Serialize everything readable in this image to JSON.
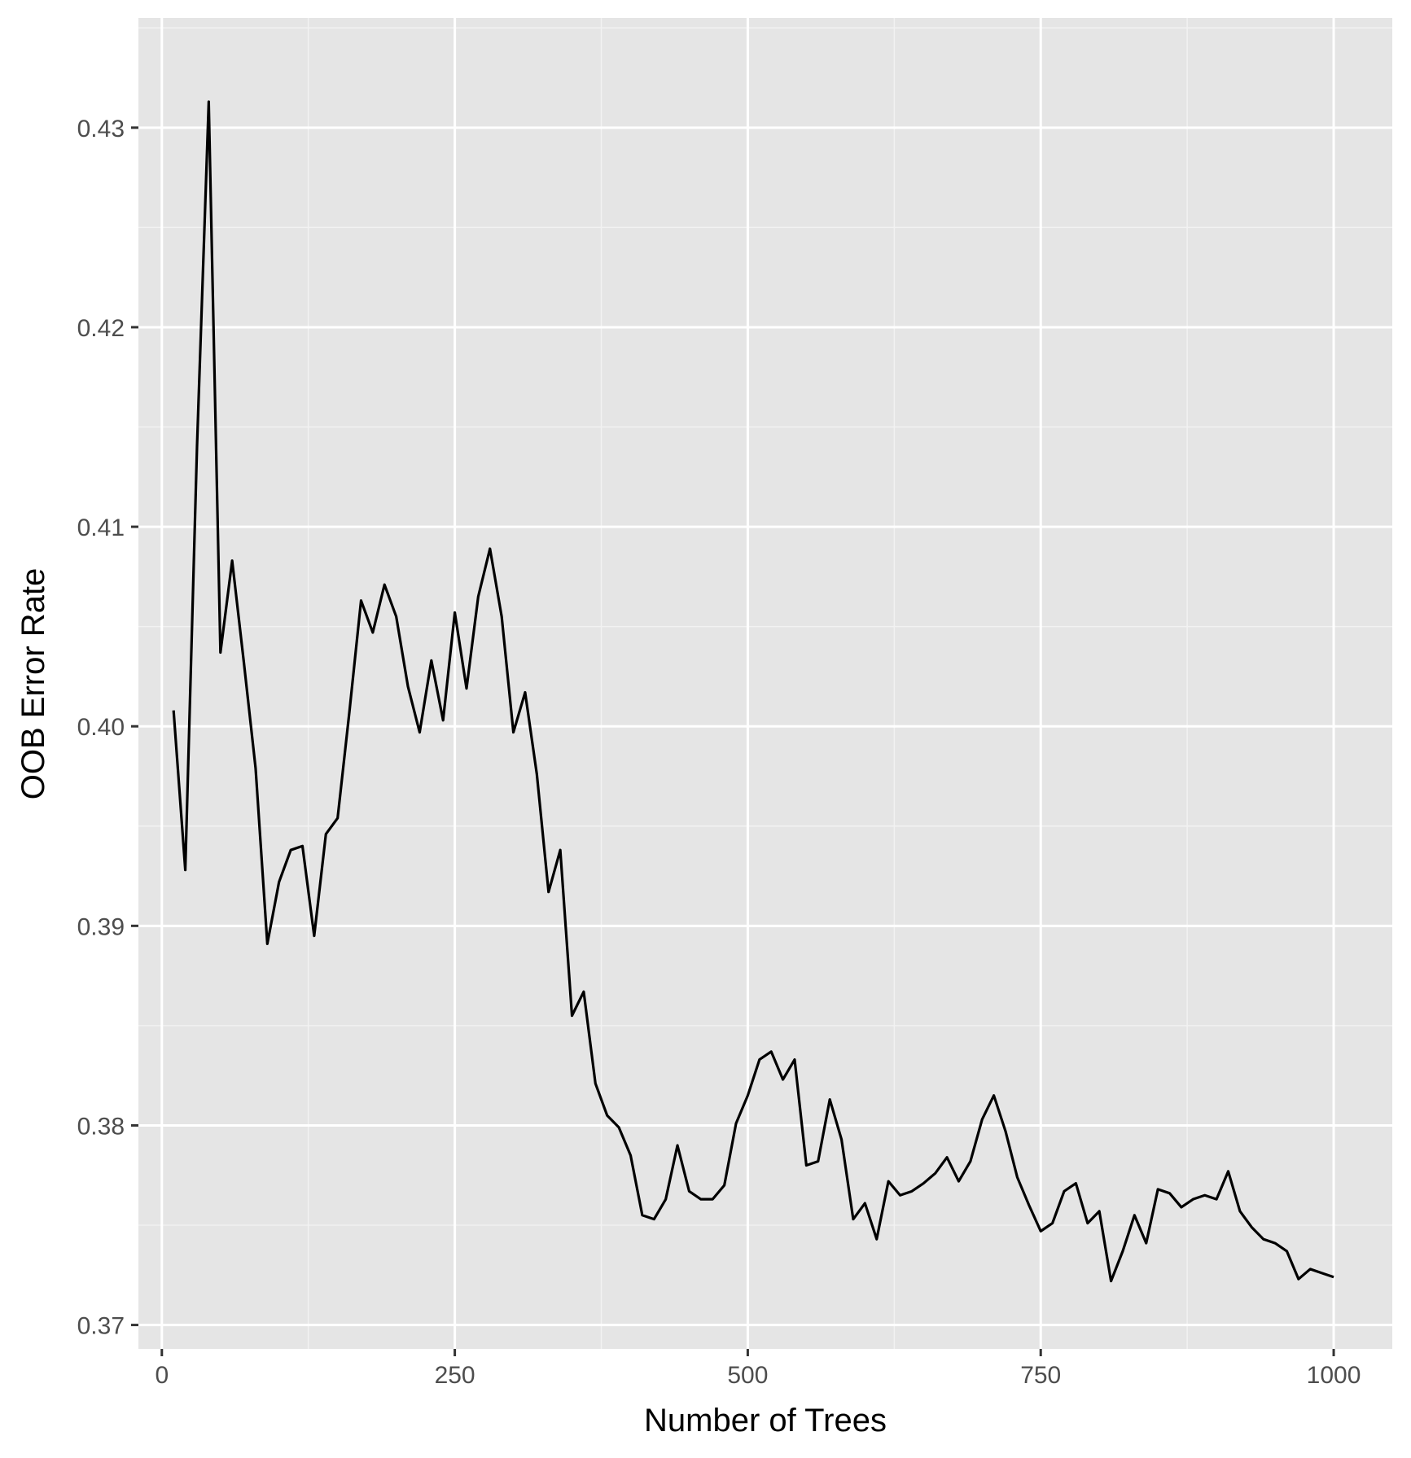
{
  "chart_data": {
    "type": "line",
    "title": "",
    "xlabel": "Number of Trees",
    "ylabel": "OOB Error Rate",
    "xlim": [
      -20,
      1050
    ],
    "ylim": [
      0.3688,
      0.4355
    ],
    "x_ticks": [
      0,
      250,
      500,
      750,
      1000
    ],
    "x_tick_labels": [
      "0",
      "250",
      "500",
      "750",
      "1000"
    ],
    "y_ticks": [
      0.37,
      0.38,
      0.39,
      0.4,
      0.41,
      0.42,
      0.43
    ],
    "y_tick_labels": [
      "0.37",
      "0.38",
      "0.39",
      "0.40",
      "0.41",
      "0.42",
      "0.43"
    ],
    "grid": true,
    "colors": {
      "panel_background": "#e5e5e5",
      "grid_major": "#ffffff",
      "grid_minor": "#f2f2f2",
      "line": "#000000",
      "tick_text": "#4d4d4d",
      "tick_mark": "#333333"
    },
    "series": [
      {
        "x": [
          10,
          20,
          30,
          40,
          50,
          60,
          70,
          80,
          90,
          100,
          110,
          120,
          130,
          140,
          150,
          160,
          170,
          180,
          190,
          200,
          210,
          220,
          230,
          240,
          250,
          260,
          270,
          280,
          290,
          300,
          310,
          320,
          330,
          340,
          350,
          360,
          370,
          380,
          390,
          400,
          410,
          420,
          430,
          440,
          450,
          460,
          470,
          480,
          490,
          500,
          510,
          520,
          530,
          540,
          550,
          560,
          570,
          580,
          590,
          600,
          610,
          620,
          630,
          640,
          650,
          660,
          670,
          680,
          690,
          700,
          710,
          720,
          730,
          740,
          750,
          760,
          770,
          780,
          790,
          800,
          810,
          820,
          830,
          840,
          850,
          860,
          870,
          880,
          890,
          900,
          910,
          920,
          930,
          940,
          950,
          960,
          970,
          980,
          990,
          1000
        ],
        "values": [
          0.4008,
          0.3928,
          0.414,
          0.4313,
          0.4037,
          0.4083,
          0.4032,
          0.3979,
          0.3891,
          0.3922,
          0.3938,
          0.394,
          0.3895,
          0.3946,
          0.3954,
          0.4007,
          0.4063,
          0.4047,
          0.4071,
          0.4055,
          0.402,
          0.3997,
          0.4033,
          0.4003,
          0.4057,
          0.4019,
          0.4065,
          0.4089,
          0.4055,
          0.3997,
          0.4017,
          0.3976,
          0.3917,
          0.3938,
          0.3855,
          0.3867,
          0.3821,
          0.3805,
          0.3799,
          0.3785,
          0.3755,
          0.3753,
          0.3763,
          0.379,
          0.3767,
          0.3763,
          0.3763,
          0.377,
          0.3801,
          0.3815,
          0.3833,
          0.3837,
          0.3823,
          0.3833,
          0.378,
          0.3782,
          0.3813,
          0.3793,
          0.3753,
          0.3761,
          0.3743,
          0.3772,
          0.3765,
          0.3767,
          0.3771,
          0.3776,
          0.3784,
          0.3772,
          0.3782,
          0.3803,
          0.3815,
          0.3797,
          0.3774,
          0.376,
          0.3747,
          0.3751,
          0.3767,
          0.3771,
          0.3751,
          0.3757,
          0.3722,
          0.3737,
          0.3755,
          0.3741,
          0.3768,
          0.3766,
          0.3759,
          0.3763,
          0.3765,
          0.3763,
          0.3777,
          0.3757,
          0.3749,
          0.3743,
          0.3741,
          0.3737,
          0.3723,
          0.3728,
          0.3726,
          0.3724
        ]
      }
    ]
  }
}
